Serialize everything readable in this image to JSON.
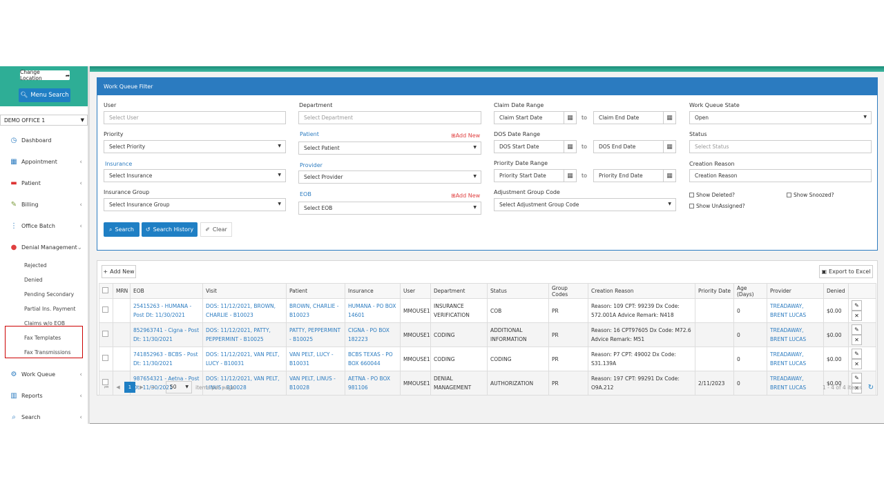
{
  "sidebar": {
    "change_location": "Change Location",
    "menu_search": "Menu Search",
    "office": "DEMO OFFICE 1",
    "items": [
      {
        "label": "Dashboard",
        "icon": "dashboard-icon"
      },
      {
        "label": "Appointment",
        "icon": "calendar-icon"
      },
      {
        "label": "Patient",
        "icon": "patient-icon"
      },
      {
        "label": "Billing",
        "icon": "billing-icon"
      },
      {
        "label": "Office Batch",
        "icon": "office-batch-icon"
      },
      {
        "label": "Denial Management",
        "icon": "denial-icon"
      }
    ],
    "sub_items": [
      "Rejected",
      "Denied",
      "Pending Secondary",
      "Partial Ins. Payment",
      "Claims w/o EOB",
      "Fax Templates",
      "Fax Transmissions"
    ],
    "bottom_items": [
      {
        "label": "Work Queue",
        "icon": "work-queue-icon"
      },
      {
        "label": "Reports",
        "icon": "reports-icon"
      },
      {
        "label": "Search",
        "icon": "search-icon"
      }
    ]
  },
  "filter": {
    "title": "Work Queue Filter",
    "user_label": "User",
    "user_ph": "Select User",
    "dept_label": "Department",
    "dept_ph": "Select Department",
    "claim_label": "Claim Date Range",
    "claim_start": "Claim Start Date",
    "claim_end": "Claim End Date",
    "wqstate_label": "Work Queue State",
    "wqstate_value": "Open",
    "priority_label": "Priority",
    "priority_ph": "Select Priority",
    "patient_label": "Patient",
    "patient_ph": "Select Patient",
    "add_new": "Add New",
    "dos_label": "DOS Date Range",
    "dos_start": "DOS Start Date",
    "dos_end": "DOS End Date",
    "status_label": "Status",
    "status_ph": "Select Status",
    "insurance_label": "Insurance",
    "insurance_ph": "Select Insurance",
    "provider_label": "Provider",
    "provider_ph": "Select Provider",
    "pdate_label": "Priority Date Range",
    "pdate_start": "Priority Start Date",
    "pdate_end": "Priority End Date",
    "creason_label": "Creation Reason",
    "creason_ph": "Creation Reason",
    "igroup_label": "Insurance Group",
    "igroup_ph": "Select Insurance Group",
    "eob_label": "EOB",
    "eob_ph": "Select EOB",
    "adj_label": "Adjustment Group Code",
    "adj_ph": "Select Adjustment Group Code",
    "show_deleted": "Show Deleted?",
    "show_snoozed": "Show Snoozed?",
    "show_unassigned": "Show UnAssigned?",
    "to": "to",
    "search_btn": "Search",
    "history_btn": "Search History",
    "clear_btn": "Clear"
  },
  "grid": {
    "add_new": "Add New",
    "export": "Export to Excel",
    "columns": [
      "",
      "MRN",
      "EOB",
      "Visit",
      "Patient",
      "Insurance",
      "User",
      "Department",
      "Status",
      "Group Codes",
      "Creation Reason",
      "Priority Date",
      "Age (Days)",
      "Provider",
      "Denied",
      ""
    ],
    "rows": [
      {
        "mrn": "",
        "eob": "25415263 - HUMANA - Post Dt: 11/30/2021",
        "visit": "DOS: 11/12/2021, BROWN, CHARLIE - B10023",
        "patient": "BROWN, CHARLIE - B10023",
        "insurance": "HUMANA - PO BOX 14601",
        "user": "MMOUSE1",
        "department": "INSURANCE VERIFICATION",
        "status": "COB",
        "group": "PR",
        "reason": "Reason: 109 CPT: 99239 Dx Code: 572.001A Advice Remark: N418",
        "pdate": "",
        "age": "0",
        "provider": "TREADAWAY, BRENT LUCAS",
        "denied": "$0.00"
      },
      {
        "mrn": "",
        "eob": "852963741 - Cigna - Post Dt: 11/30/2021",
        "visit": "DOS: 11/12/2021, PATTY, PEPPERMINT - B10025",
        "patient": "PATTY, PEPPERMINT - B10025",
        "insurance": "CIGNA - PO BOX 182223",
        "user": "MMOUSE1",
        "department": "CODING",
        "status": "ADDITIONAL INFORMATION",
        "group": "PR",
        "reason": "Reason: 16 CPT97605 Dx Code: M72.6 Advice Remark: M51",
        "pdate": "",
        "age": "0",
        "provider": "TREADAWAY, BRENT LUCAS",
        "denied": "$0.00"
      },
      {
        "mrn": "",
        "eob": "741852963 - BCBS - Post Dt: 11/30/2021",
        "visit": "DOS: 11/12/2021, VAN PELT, LUCY - B10031",
        "patient": "VAN PELT, LUCY - B10031",
        "insurance": "BCBS TEXAS - PO BOX 660044",
        "user": "MMOUSE1",
        "department": "CODING",
        "status": "CODING",
        "group": "PR",
        "reason": "Reason: P7 CPT: 49002 Dx Code: S31.139A",
        "pdate": "",
        "age": "0",
        "provider": "TREADAWAY, BRENT LUCAS",
        "denied": "$0.00"
      },
      {
        "mrn": "",
        "eob": "987654321 - Aetna - Post Dt: 11/30/2021",
        "visit": "DOS: 11/12/2021, VAN PELT, LINUS - B10028",
        "patient": "VAN PELT, LINUS - B10028",
        "insurance": "AETNA - PO BOX 981106",
        "user": "MMOUSE1",
        "department": "DENIAL MANAGEMENT",
        "status": "AUTHORIZATION",
        "group": "PR",
        "reason": "Reason: 197 CPT: 99291 Dx Code: O9A.212",
        "pdate": "2/11/2023",
        "age": "0",
        "provider": "TREADAWAY, BRENT LUCAS",
        "denied": "$0.00"
      }
    ],
    "page": "1",
    "page_size": "50",
    "items_per_page": "items per page",
    "summary": "1 - 4 of 4 items"
  }
}
